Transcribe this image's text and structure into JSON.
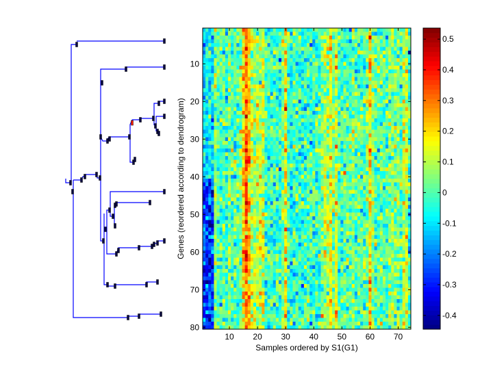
{
  "chart_data": [
    {
      "type": "dendrogram",
      "title": "",
      "orientation": "left",
      "leaves": 80
    },
    {
      "type": "heatmap",
      "title": "",
      "xlabel": "Samples ordered by S1(G1)",
      "ylabel": "Genes (reordered according to dendrogram)",
      "n_rows": 80,
      "n_cols": 74,
      "xlim": [
        0.5,
        74.5
      ],
      "ylim": [
        0.5,
        80.5
      ],
      "xticks": [
        "10",
        "20",
        "30",
        "40",
        "50",
        "60",
        "70"
      ],
      "xtick_values": [
        10,
        20,
        30,
        40,
        50,
        60,
        70
      ],
      "yticks": [
        "10",
        "20",
        "30",
        "40",
        "50",
        "60",
        "70",
        "80"
      ],
      "ytick_values": [
        10,
        20,
        30,
        40,
        50,
        60,
        70,
        80
      ],
      "colormap": "jet",
      "clim": [
        -0.445,
        0.536
      ],
      "noise_seed": 7,
      "noise_std": 0.08,
      "column_profile": [
        -0.1,
        -0.1,
        -0.08,
        -0.1,
        0.05,
        0,
        0,
        0,
        -0.05,
        0.05,
        0,
        0,
        0,
        0.02,
        0.2,
        0.32,
        0.2,
        0.1,
        0.1,
        0.08,
        0.1,
        0.1,
        -0.02,
        -0.02,
        -0.03,
        -0.02,
        -0.02,
        -0.03,
        0.05,
        0.18,
        -0.02,
        -0.03,
        -0.02,
        -0.02,
        -0.03,
        -0.02,
        -0.02,
        -0.02,
        -0.03,
        -0.02,
        -0.02,
        -0.02,
        0.05,
        0.1,
        0.08,
        0.16,
        0.05,
        0.15,
        0,
        0,
        0,
        0,
        0,
        0.05,
        0,
        0,
        0,
        0,
        0.05,
        0.2,
        0.05,
        0,
        0,
        0,
        0,
        0,
        0.05,
        0.05,
        0.05,
        0.05,
        0,
        0.1,
        0.12,
        -0.05
      ],
      "block_effect": {
        "rows": [
          42,
          80
        ],
        "cols": [
          1,
          4
        ],
        "offset": -0.2
      }
    },
    {
      "type": "colorbar",
      "ticks": [
        "-0.4",
        "-0.3",
        "-0.2",
        "-0.1",
        "0",
        "0.1",
        "0.2",
        "0.3",
        "0.4",
        "0.5"
      ],
      "tick_values": [
        -0.4,
        -0.3,
        -0.2,
        -0.1,
        0,
        0.1,
        0.2,
        0.3,
        0.4,
        0.5
      ],
      "range": [
        -0.445,
        0.536
      ]
    }
  ],
  "colors": {
    "dendrogram_line": "#0000ff",
    "node_marker": "#0a0a40",
    "highlight_node": "#ff2000"
  }
}
